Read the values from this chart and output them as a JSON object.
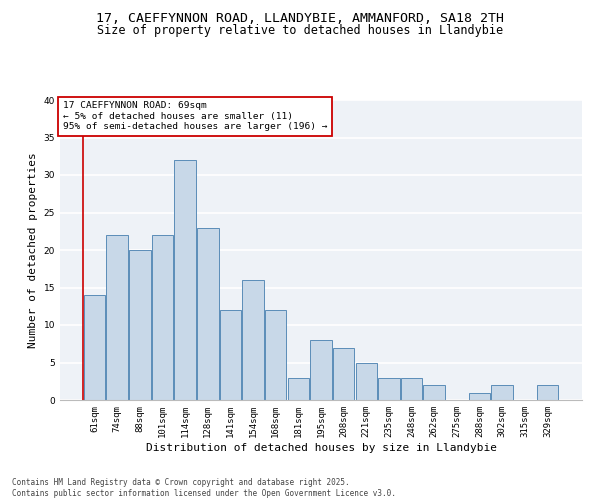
{
  "title_line1": "17, CAEFFYNNON ROAD, LLANDYBIE, AMMANFORD, SA18 2TH",
  "title_line2": "Size of property relative to detached houses in Llandybie",
  "xlabel": "Distribution of detached houses by size in Llandybie",
  "ylabel": "Number of detached properties",
  "categories": [
    "61sqm",
    "74sqm",
    "88sqm",
    "101sqm",
    "114sqm",
    "128sqm",
    "141sqm",
    "154sqm",
    "168sqm",
    "181sqm",
    "195sqm",
    "208sqm",
    "221sqm",
    "235sqm",
    "248sqm",
    "262sqm",
    "275sqm",
    "288sqm",
    "302sqm",
    "315sqm",
    "329sqm"
  ],
  "values": [
    14,
    22,
    20,
    22,
    32,
    23,
    12,
    16,
    12,
    3,
    8,
    7,
    5,
    3,
    3,
    2,
    0,
    1,
    2,
    0,
    2
  ],
  "bar_color": "#c8d8e8",
  "bar_edge_color": "#5b8db8",
  "bg_color": "#eef2f7",
  "grid_color": "#ffffff",
  "annotation_box_text": "17 CAEFFYNNON ROAD: 69sqm\n← 5% of detached houses are smaller (11)\n95% of semi-detached houses are larger (196) →",
  "annotation_box_color": "#ffffff",
  "annotation_box_edge": "#cc0000",
  "vline_color": "#cc0000",
  "ylim": [
    0,
    40
  ],
  "yticks": [
    0,
    5,
    10,
    15,
    20,
    25,
    30,
    35,
    40
  ],
  "footnote": "Contains HM Land Registry data © Crown copyright and database right 2025.\nContains public sector information licensed under the Open Government Licence v3.0.",
  "title_fontsize": 9.5,
  "subtitle_fontsize": 8.5,
  "xlabel_fontsize": 8,
  "ylabel_fontsize": 8,
  "tick_fontsize": 6.5,
  "annot_fontsize": 6.8,
  "footnote_fontsize": 5.5
}
